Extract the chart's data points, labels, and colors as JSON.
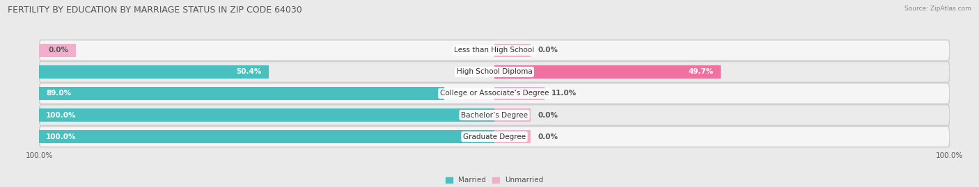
{
  "title": "FERTILITY BY EDUCATION BY MARRIAGE STATUS IN ZIP CODE 64030",
  "source": "Source: ZipAtlas.com",
  "categories": [
    "Less than High School",
    "High School Diploma",
    "College or Associate’s Degree",
    "Bachelor’s Degree",
    "Graduate Degree"
  ],
  "married": [
    0.0,
    50.4,
    89.0,
    100.0,
    100.0
  ],
  "unmarried": [
    0.0,
    49.7,
    11.0,
    0.0,
    0.0
  ],
  "married_color": "#49BFBF",
  "unmarried_color": "#F070A0",
  "unmarried_stub_color": "#F4AECB",
  "bg_color": "#EAEAEA",
  "row_bg_color": "#F5F5F5",
  "row_stripe_color": "#EBEBEB",
  "title_fontsize": 9,
  "label_fontsize": 7.5,
  "tick_fontsize": 7.5,
  "bar_height": 0.62,
  "max_val": 100.0,
  "x_left_label": "100.0%",
  "x_right_label": "100.0%",
  "legend_married": "Married",
  "legend_unmarried": "Unmarried",
  "stub_size": 8.0
}
